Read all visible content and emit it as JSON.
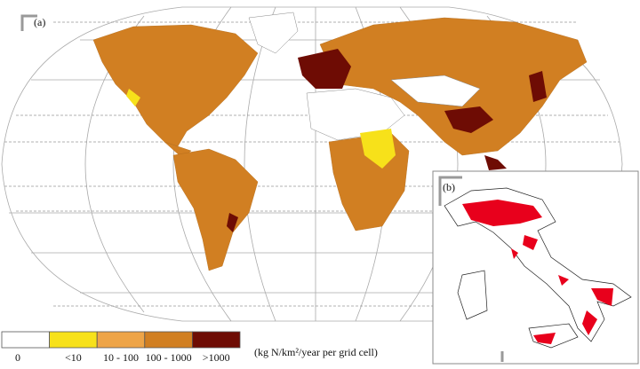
{
  "panel_a_label": "(a)",
  "panel_b_label": "(b)",
  "legend": {
    "items": [
      {
        "label": "0",
        "color": "#ffffff"
      },
      {
        "label": "<10",
        "color": "#f7e11a"
      },
      {
        "label": "10 - 100",
        "color": "#eea447"
      },
      {
        "label": "100 - 1000",
        "color": "#d17f22"
      },
      {
        "label": ">1000",
        "color": "#6e0c04"
      }
    ],
    "unit": "(kg N/km²/year per grid cell)"
  }
}
